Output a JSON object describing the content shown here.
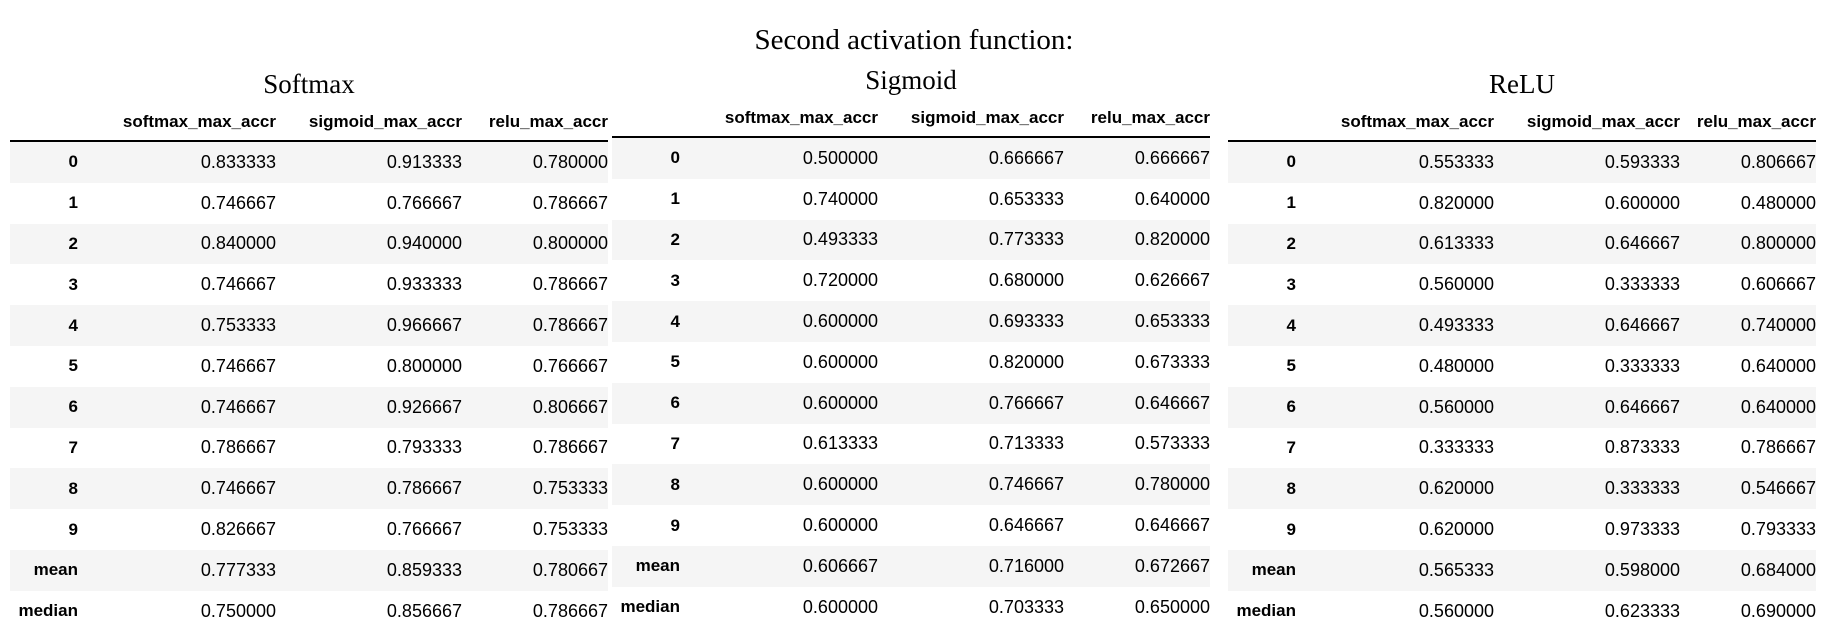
{
  "main_title": "Second activation function:",
  "columns": [
    "softmax_max_accr",
    "sigmoid_max_accr",
    "relu_max_accr"
  ],
  "panels": [
    {
      "title": "Softmax",
      "rows": [
        {
          "index": "0",
          "values": [
            "0.833333",
            "0.913333",
            "0.780000"
          ]
        },
        {
          "index": "1",
          "values": [
            "0.746667",
            "0.766667",
            "0.786667"
          ]
        },
        {
          "index": "2",
          "values": [
            "0.840000",
            "0.940000",
            "0.800000"
          ]
        },
        {
          "index": "3",
          "values": [
            "0.746667",
            "0.933333",
            "0.786667"
          ]
        },
        {
          "index": "4",
          "values": [
            "0.753333",
            "0.966667",
            "0.786667"
          ]
        },
        {
          "index": "5",
          "values": [
            "0.746667",
            "0.800000",
            "0.766667"
          ]
        },
        {
          "index": "6",
          "values": [
            "0.746667",
            "0.926667",
            "0.806667"
          ]
        },
        {
          "index": "7",
          "values": [
            "0.786667",
            "0.793333",
            "0.786667"
          ]
        },
        {
          "index": "8",
          "values": [
            "0.746667",
            "0.786667",
            "0.753333"
          ]
        },
        {
          "index": "9",
          "values": [
            "0.826667",
            "0.766667",
            "0.753333"
          ]
        },
        {
          "index": "mean",
          "values": [
            "0.777333",
            "0.859333",
            "0.780667"
          ]
        },
        {
          "index": "median",
          "values": [
            "0.750000",
            "0.856667",
            "0.786667"
          ]
        }
      ]
    },
    {
      "title": "Sigmoid",
      "rows": [
        {
          "index": "0",
          "values": [
            "0.500000",
            "0.666667",
            "0.666667"
          ]
        },
        {
          "index": "1",
          "values": [
            "0.740000",
            "0.653333",
            "0.640000"
          ]
        },
        {
          "index": "2",
          "values": [
            "0.493333",
            "0.773333",
            "0.820000"
          ]
        },
        {
          "index": "3",
          "values": [
            "0.720000",
            "0.680000",
            "0.626667"
          ]
        },
        {
          "index": "4",
          "values": [
            "0.600000",
            "0.693333",
            "0.653333"
          ]
        },
        {
          "index": "5",
          "values": [
            "0.600000",
            "0.820000",
            "0.673333"
          ]
        },
        {
          "index": "6",
          "values": [
            "0.600000",
            "0.766667",
            "0.646667"
          ]
        },
        {
          "index": "7",
          "values": [
            "0.613333",
            "0.713333",
            "0.573333"
          ]
        },
        {
          "index": "8",
          "values": [
            "0.600000",
            "0.746667",
            "0.780000"
          ]
        },
        {
          "index": "9",
          "values": [
            "0.600000",
            "0.646667",
            "0.646667"
          ]
        },
        {
          "index": "mean",
          "values": [
            "0.606667",
            "0.716000",
            "0.672667"
          ]
        },
        {
          "index": "median",
          "values": [
            "0.600000",
            "0.703333",
            "0.650000"
          ]
        }
      ]
    },
    {
      "title": "ReLU",
      "rows": [
        {
          "index": "0",
          "values": [
            "0.553333",
            "0.593333",
            "0.806667"
          ]
        },
        {
          "index": "1",
          "values": [
            "0.820000",
            "0.600000",
            "0.480000"
          ]
        },
        {
          "index": "2",
          "values": [
            "0.613333",
            "0.646667",
            "0.800000"
          ]
        },
        {
          "index": "3",
          "values": [
            "0.560000",
            "0.333333",
            "0.606667"
          ]
        },
        {
          "index": "4",
          "values": [
            "0.493333",
            "0.646667",
            "0.740000"
          ]
        },
        {
          "index": "5",
          "values": [
            "0.480000",
            "0.333333",
            "0.640000"
          ]
        },
        {
          "index": "6",
          "values": [
            "0.560000",
            "0.646667",
            "0.640000"
          ]
        },
        {
          "index": "7",
          "values": [
            "0.333333",
            "0.873333",
            "0.786667"
          ]
        },
        {
          "index": "8",
          "values": [
            "0.620000",
            "0.333333",
            "0.546667"
          ]
        },
        {
          "index": "9",
          "values": [
            "0.620000",
            "0.973333",
            "0.793333"
          ]
        },
        {
          "index": "mean",
          "values": [
            "0.565333",
            "0.598000",
            "0.684000"
          ]
        },
        {
          "index": "median",
          "values": [
            "0.560000",
            "0.623333",
            "0.690000"
          ]
        }
      ]
    }
  ]
}
